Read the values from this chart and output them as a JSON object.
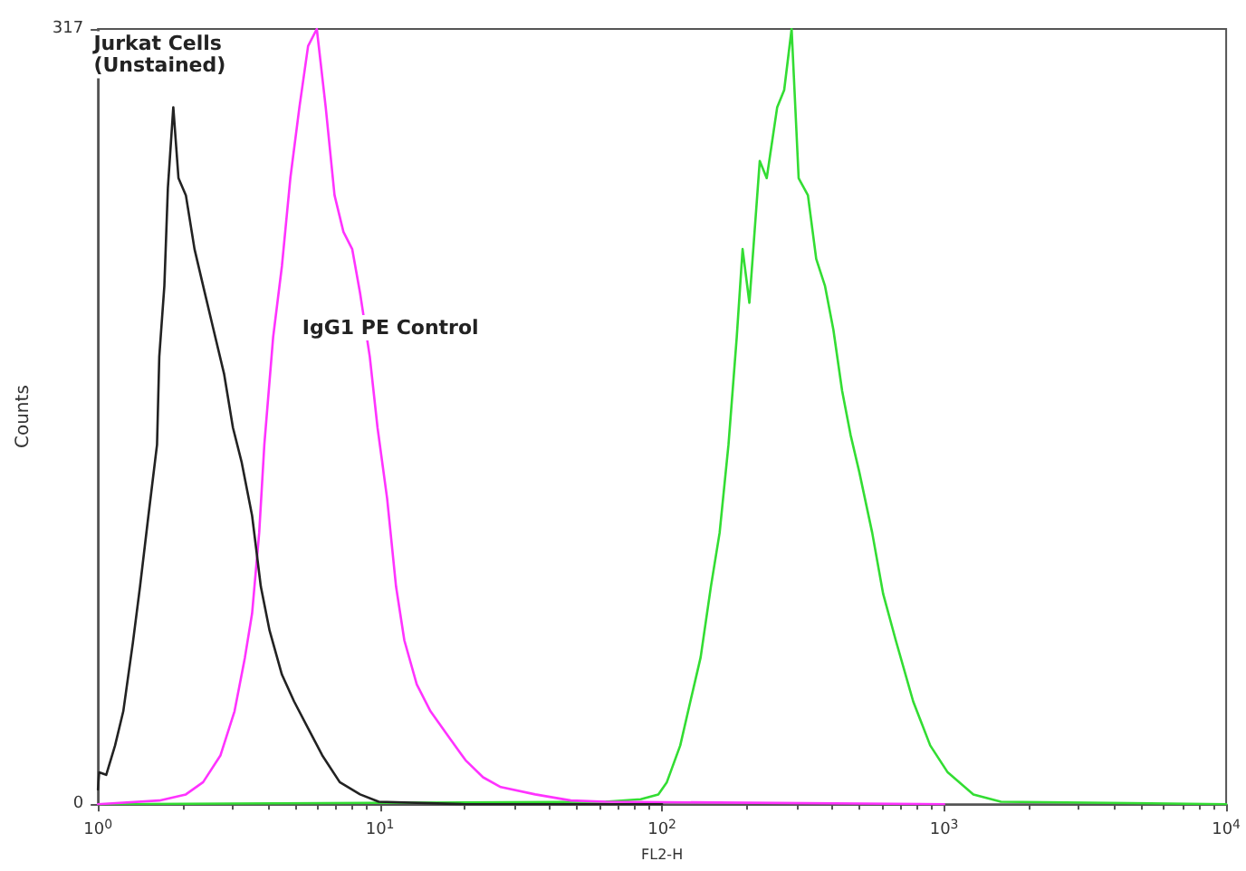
{
  "chart_data": {
    "type": "line",
    "xlabel": "FL2-H",
    "ylabel": "Counts",
    "log": "x",
    "grid": false,
    "marker": "none",
    "line_style": "solid",
    "xlim": [
      1,
      10000
    ],
    "xticks": [
      {
        "value": 1,
        "label": "10$^{0}$"
      },
      {
        "value": 10,
        "label": "10$^{1}$"
      },
      {
        "value": 100,
        "label": "10$^{2}$"
      },
      {
        "value": 1000,
        "label": "10$^{3}$"
      },
      {
        "value": 10000,
        "label": "10$^{4}$"
      }
    ],
    "ylim": [
      0,
      317
    ],
    "yticks": [
      0,
      317
    ],
    "series": [
      {
        "name": "Jurkat Cells\n(Unstained)",
        "color": "#222222",
        "x": [
          1.0,
          1.01,
          1.07,
          1.15,
          1.23,
          1.33,
          1.41,
          1.51,
          1.62,
          1.65,
          1.72,
          1.77,
          1.85,
          1.93,
          2.05,
          2.2,
          2.36,
          2.57,
          2.8,
          3.01,
          3.23,
          3.52,
          3.78,
          4.06,
          4.49,
          4.96,
          5.56,
          6.24,
          7.2,
          8.5,
          9.9,
          20,
          100
        ],
        "values": [
          6,
          13,
          12,
          24,
          38,
          66,
          89,
          118,
          147,
          183,
          212,
          252,
          285,
          256,
          249,
          227,
          212,
          194,
          176,
          154,
          140,
          118,
          89,
          71,
          53,
          42,
          31,
          20,
          9,
          4,
          1,
          0,
          0
        ]
      },
      {
        "name": "IgG1 PE Control",
        "color": "#ff33ff",
        "x": [
          1,
          1.65,
          2.05,
          2.36,
          2.72,
          3.05,
          3.32,
          3.52,
          3.73,
          3.89,
          4.18,
          4.49,
          4.81,
          5.18,
          5.56,
          5.97,
          6.42,
          6.9,
          7.42,
          7.97,
          8.5,
          9.2,
          9.8,
          10.6,
          11.4,
          12.2,
          13.5,
          15.1,
          17.4,
          20.1,
          23.2,
          26.8,
          35.5,
          47.5,
          63,
          1000
        ],
        "values": [
          0,
          1.5,
          4,
          9,
          20,
          38,
          60,
          78,
          111,
          147,
          191,
          220,
          256,
          285,
          310,
          317,
          285,
          249,
          234,
          227,
          209,
          183,
          154,
          125,
          89,
          67,
          49,
          38,
          28,
          18,
          11,
          7,
          4,
          1.5,
          1,
          0
        ]
      },
      {
        "color": "#33dd33",
        "x": [
          1,
          63,
          84,
          97,
          104,
          116,
          126,
          137,
          149,
          160,
          172,
          184,
          193,
          204,
          222,
          235,
          256,
          271,
          288,
          305,
          329,
          352,
          378,
          405,
          435,
          466,
          500,
          556,
          608,
          674,
          777,
          893,
          1030,
          1270,
          1590,
          10000
        ],
        "values": [
          0,
          1,
          2,
          4,
          9,
          24,
          42,
          60,
          89,
          111,
          147,
          191,
          227,
          205,
          263,
          256,
          285,
          292,
          317,
          256,
          249,
          223,
          212,
          194,
          169,
          151,
          136,
          111,
          86,
          67,
          42,
          24,
          13,
          4,
          1,
          0
        ]
      }
    ]
  }
}
